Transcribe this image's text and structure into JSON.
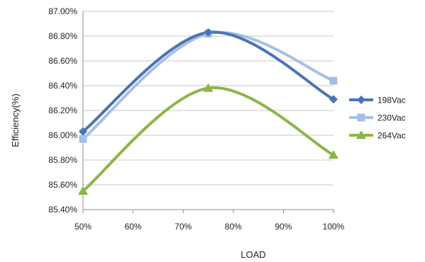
{
  "chart_data": {
    "type": "line",
    "title": "",
    "xlabel": "LOAD",
    "ylabel": "Efficiency(%)",
    "x": [
      50,
      75,
      100
    ],
    "x_ticks": [
      50,
      60,
      70,
      80,
      90,
      100
    ],
    "x_tick_labels": [
      "50%",
      "60%",
      "70%",
      "80%",
      "90%",
      "100%"
    ],
    "xlim": [
      50,
      100
    ],
    "ylim": [
      85.4,
      87.0
    ],
    "y_ticks": [
      85.4,
      85.6,
      85.8,
      86.0,
      86.2,
      86.4,
      86.6,
      86.8,
      87.0
    ],
    "y_tick_labels": [
      "85.40%",
      "85.60%",
      "85.80%",
      "86.00%",
      "86.20%",
      "86.40%",
      "86.60%",
      "86.80%",
      "87.00%"
    ],
    "grid": "horizontal",
    "legend_position": "right",
    "smoothed": true,
    "series": [
      {
        "name": "198Vac",
        "values": [
          86.03,
          86.83,
          86.29
        ],
        "color": "#4a74b5",
        "marker": "diamond"
      },
      {
        "name": "230Vac",
        "values": [
          85.97,
          86.82,
          86.44
        ],
        "color": "#a6c0e3",
        "marker": "square"
      },
      {
        "name": "264Vac",
        "values": [
          85.55,
          86.38,
          85.84
        ],
        "color": "#8cb548",
        "marker": "triangle"
      }
    ]
  }
}
